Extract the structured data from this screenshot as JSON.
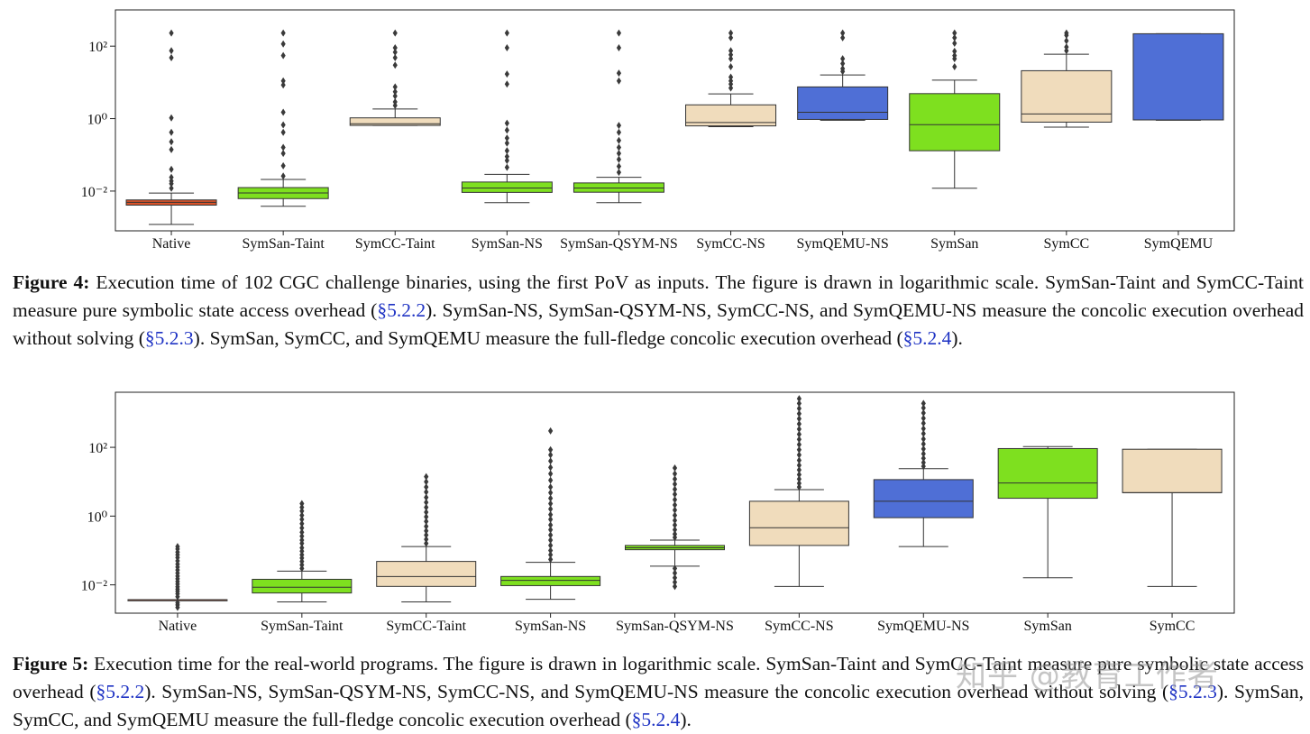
{
  "colors": {
    "native": "#d9532a",
    "green": "#7ee01f",
    "wheat": "#f0dcbc",
    "blue": "#4f6fd6",
    "link": "#1f33c4"
  },
  "watermark": "知乎 @教育工作者",
  "figures": [
    {
      "caption": {
        "label": "Figure 4:",
        "parts": [
          {
            "t": " Execution time of 102 CGC challenge binaries, using the first PoV as inputs. The figure is drawn in logarithmic scale. SymSan-Taint and SymCC-Taint measure pure symbolic state access overhead ("
          },
          {
            "t": "§5.2.2",
            "ref": true
          },
          {
            "t": "). SymSan-NS, SymSan-QSYM-NS, SymCC-NS, and SymQEMU-NS measure the concolic execution overhead without solving ("
          },
          {
            "t": "§5.2.3",
            "ref": true
          },
          {
            "t": "). SymSan, SymCC, and SymQEMU measure the full-fledge concolic execution overhead ("
          },
          {
            "t": "§5.2.4",
            "ref": true
          },
          {
            "t": ")."
          }
        ]
      },
      "chart_data": {
        "type": "boxplot",
        "yscale": "log",
        "ylim": [
          0.0008,
          1000
        ],
        "yticks": [
          {
            "value": 0.01,
            "label": "10⁻²"
          },
          {
            "value": 1,
            "label": "10⁰"
          },
          {
            "value": 100,
            "label": "10²"
          }
        ],
        "categories": [
          "Native",
          "SymSan-Taint",
          "SymCC-Taint",
          "SymSan-NS",
          "SymSan-QSYM-NS",
          "SymCC-NS",
          "SymQEMU-NS",
          "SymSan",
          "SymCC",
          "SymQEMU"
        ],
        "boxes": [
          {
            "color": "native",
            "whislo": 0.0012,
            "q1": 0.0041,
            "med": 0.0049,
            "q3": 0.0057,
            "whishi": 0.0088,
            "fliers": [
              0.012,
              0.016,
              0.019,
              0.024,
              0.04,
              0.14,
              0.23,
              0.42,
              1.05,
              48,
              75,
              230
            ]
          },
          {
            "color": "green",
            "whislo": 0.0038,
            "q1": 0.0062,
            "med": 0.0089,
            "q3": 0.0125,
            "whishi": 0.021,
            "fliers": [
              0.026,
              0.05,
              0.11,
              0.16,
              0.42,
              0.67,
              1.5,
              8.5,
              11,
              55,
              115,
              230
            ]
          },
          {
            "color": "wheat",
            "whislo": 0.65,
            "q1": 0.65,
            "med": 0.72,
            "q3": 1.05,
            "whishi": 1.85,
            "fliers": [
              2.3,
              2.9,
              4.2,
              5.5,
              7.5,
              30,
              48,
              68,
              90,
              230
            ]
          },
          {
            "color": "green",
            "whislo": 0.0048,
            "q1": 0.0092,
            "med": 0.0122,
            "q3": 0.0178,
            "whishi": 0.029,
            "fliers": [
              0.045,
              0.07,
              0.09,
              0.13,
              0.21,
              0.29,
              0.48,
              0.75,
              9,
              17,
              90,
              230
            ]
          },
          {
            "color": "green",
            "whislo": 0.0048,
            "q1": 0.0093,
            "med": 0.0122,
            "q3": 0.0168,
            "whishi": 0.024,
            "fliers": [
              0.033,
              0.048,
              0.075,
              0.11,
              0.16,
              0.25,
              0.42,
              0.65,
              11,
              18,
              90,
              230
            ]
          },
          {
            "color": "wheat",
            "whislo": 0.6,
            "q1": 0.63,
            "med": 0.78,
            "q3": 2.4,
            "whishi": 4.8,
            "fliers": [
              7,
              9,
              11,
              14,
              27,
              45,
              58,
              75,
              170,
              230
            ]
          },
          {
            "color": "blue",
            "whislo": 0.9,
            "q1": 0.95,
            "med": 1.5,
            "q3": 7.5,
            "whishi": 16,
            "fliers": [
              20,
              24,
              33,
              45,
              170,
              230
            ]
          },
          {
            "color": "green",
            "whislo": 0.012,
            "q1": 0.13,
            "med": 0.68,
            "q3": 4.9,
            "whishi": 11.5,
            "fliers": [
              27,
              45,
              55,
              72,
              120,
              170,
              230
            ]
          },
          {
            "color": "wheat",
            "whislo": 0.58,
            "q1": 0.8,
            "med": 1.35,
            "q3": 21,
            "whishi": 60,
            "fliers": [
              75,
              95,
              140,
              200,
              230
            ]
          },
          {
            "color": "blue",
            "whislo": 0.9,
            "q1": 0.92,
            "med": 0.92,
            "q3": 220,
            "whishi": 220,
            "fliers": []
          }
        ]
      }
    },
    {
      "caption": {
        "label": "Figure 5:",
        "parts": [
          {
            "t": " Execution time for the real-world programs. The figure is drawn in logarithmic scale. SymSan-Taint and SymCC-Taint measure pure symbolic state access overhead ("
          },
          {
            "t": "§5.2.2",
            "ref": true
          },
          {
            "t": "). SymSan-NS, SymSan-QSYM-NS, SymCC-NS, and SymQEMU-NS measure the concolic execution overhead without solving ("
          },
          {
            "t": "§5.2.3",
            "ref": true
          },
          {
            "t": "). SymSan, SymCC, and SymQEMU measure the full-fledge concolic execution overhead ("
          },
          {
            "t": "§5.2.4",
            "ref": true
          },
          {
            "t": ")."
          }
        ]
      },
      "chart_data": {
        "type": "boxplot",
        "yscale": "log",
        "ylim": [
          0.0015,
          4000
        ],
        "yticks": [
          {
            "value": 0.01,
            "label": "10⁻²"
          },
          {
            "value": 1,
            "label": "10⁰"
          },
          {
            "value": 100,
            "label": "10²"
          }
        ],
        "categories": [
          "Native",
          "SymSan-Taint",
          "SymCC-Taint",
          "SymSan-NS",
          "SymSan-QSYM-NS",
          "SymCC-NS",
          "SymQEMU-NS",
          "SymSan",
          "SymCC"
        ],
        "boxes": [
          {
            "color": "native",
            "whislo": 0.0037,
            "q1": 0.0037,
            "med": 0.0037,
            "q3": 0.0037,
            "whishi": 0.0037,
            "fliers": [
              0.0022,
              0.0026,
              0.003,
              0.0045,
              0.0055,
              0.0065,
              0.0075,
              0.0088,
              0.0105,
              0.0125,
              0.015,
              0.018,
              0.022,
              0.027,
              0.033,
              0.04,
              0.05,
              0.062,
              0.075,
              0.09,
              0.11,
              0.13
            ]
          },
          {
            "color": "green",
            "whislo": 0.0032,
            "q1": 0.0058,
            "med": 0.0085,
            "q3": 0.0145,
            "whishi": 0.025,
            "fliers": [
              0.03,
              0.038,
              0.048,
              0.06,
              0.075,
              0.095,
              0.12,
              0.16,
              0.2,
              0.26,
              0.34,
              0.45,
              0.6,
              0.8,
              1.05,
              1.4,
              1.8,
              2.3
            ]
          },
          {
            "color": "wheat",
            "whislo": 0.0032,
            "q1": 0.009,
            "med": 0.0175,
            "q3": 0.048,
            "whishi": 0.13,
            "fliers": [
              0.16,
              0.21,
              0.28,
              0.37,
              0.5,
              0.7,
              0.95,
              1.3,
              1.8,
              2.5,
              3.5,
              5,
              7,
              10,
              14
            ]
          },
          {
            "color": "green",
            "whislo": 0.0038,
            "q1": 0.0095,
            "med": 0.0135,
            "q3": 0.0175,
            "whishi": 0.045,
            "fliers": [
              0.055,
              0.075,
              0.1,
              0.14,
              0.2,
              0.28,
              0.4,
              0.55,
              0.8,
              1.1,
              1.6,
              2.3,
              3.3,
              4.8,
              7,
              11,
              17,
              26,
              40,
              60,
              85,
              300
            ]
          },
          {
            "color": "green",
            "whislo": 0.035,
            "q1": 0.105,
            "med": 0.12,
            "q3": 0.14,
            "whishi": 0.2,
            "fliers": [
              0.009,
              0.012,
              0.016,
              0.022,
              0.03,
              0.24,
              0.3,
              0.4,
              0.55,
              0.75,
              1.05,
              1.5,
              2.1,
              3,
              4.3,
              6,
              8.5,
              12,
              17,
              25
            ]
          },
          {
            "color": "wheat",
            "whislo": 0.009,
            "q1": 0.14,
            "med": 0.46,
            "q3": 2.7,
            "whishi": 5.9,
            "fliers": [
              7,
              9,
              12,
              16,
              22,
              30,
              42,
              60,
              85,
              120,
              170,
              240,
              340,
              480,
              680,
              950,
              1350,
              1900,
              2600
            ]
          },
          {
            "color": "blue",
            "whislo": 0.13,
            "q1": 0.9,
            "med": 2.7,
            "q3": 11.5,
            "whishi": 24,
            "fliers": [
              28,
              36,
              48,
              65,
              90,
              125,
              175,
              250,
              350,
              500,
              700,
              1000,
              1400,
              1900
            ]
          },
          {
            "color": "green",
            "whislo": 0.016,
            "q1": 3.3,
            "med": 9.2,
            "q3": 92,
            "whishi": 105,
            "fliers": []
          },
          {
            "color": "wheat",
            "whislo": 0.009,
            "q1": 4.8,
            "med": 4.8,
            "q3": 88,
            "whishi": 88,
            "fliers": []
          }
        ]
      }
    }
  ]
}
